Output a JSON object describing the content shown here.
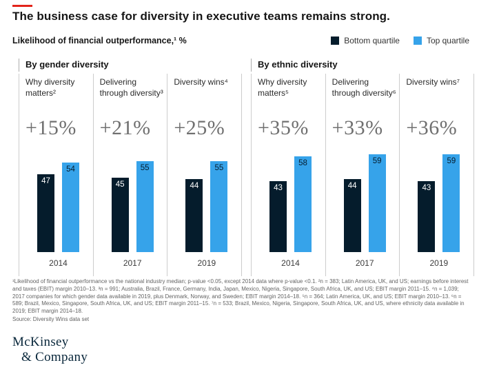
{
  "title": "The business case for diversity in executive teams remains strong.",
  "subtitle": "Likelihood of financial outperformance,¹ %",
  "legend": {
    "items": [
      {
        "label": "Bottom quartile",
        "color": "#051c2c"
      },
      {
        "label": "Top quartile",
        "color": "#36a3ea"
      }
    ]
  },
  "chart_data": {
    "type": "bar",
    "title": "Likelihood of financial outperformance, %",
    "series_names": [
      "Bottom quartile",
      "Top quartile"
    ],
    "ylim": [
      0,
      60
    ],
    "grid": false,
    "legend_position": "top-right",
    "groups": [
      {
        "label": "By gender diversity",
        "panels": [
          {
            "study": "Why diversity matters²",
            "delta": "+15%",
            "year": "2014",
            "bottom_quartile": 47,
            "top_quartile": 54
          },
          {
            "study": "Delivering through diversity³",
            "delta": "+21%",
            "year": "2017",
            "bottom_quartile": 45,
            "top_quartile": 55
          },
          {
            "study": "Diversity wins⁴",
            "delta": "+25%",
            "year": "2019",
            "bottom_quartile": 44,
            "top_quartile": 55
          }
        ]
      },
      {
        "label": "By ethnic diversity",
        "panels": [
          {
            "study": "Why diversity matters⁵",
            "delta": "+35%",
            "year": "2014",
            "bottom_quartile": 43,
            "top_quartile": 58
          },
          {
            "study": "Delivering through diversity⁶",
            "delta": "+33%",
            "year": "2017",
            "bottom_quartile": 44,
            "top_quartile": 59
          },
          {
            "study": "Diversity wins⁷",
            "delta": "+36%",
            "year": "2019",
            "bottom_quartile": 43,
            "top_quartile": 59
          }
        ]
      }
    ]
  },
  "footnote": "¹Likelihood of financial outperformance vs the national industry median; p-value <0.05, except 2014 data where p-value <0.1. ²n = 383; Latin America, UK, and US; earnings before interest and taxes (EBIT) margin 2010–13. ³n = 991; Australia, Brazil, France, Germany, India, Japan, Mexico, Nigeria, Singapore, South Africa, UK, and US; EBIT margin 2011–15. ⁴n = 1,039; 2017 companies for which gender data available in 2019, plus Denmark, Norway, and Sweden; EBIT margin 2014–18. ⁵n = 364; Latin America, UK, and US; EBIT margin 2010–13. ⁶n = 589; Brazil, Mexico, Singapore, South Africa, UK, and US; EBIT margin 2011–15. ⁷n = 533; Brazil, Mexico, Nigeria, Singapore, South Africa, UK, and US, where ethnicity data available in 2019; EBIT margin 2014–18.",
  "source": "Source: Diversity Wins data set",
  "logo": {
    "line1": "McKinsey",
    "line2": "& Company"
  },
  "colors": {
    "bottom_quartile": "#051c2c",
    "top_quartile": "#36a3ea",
    "accent_red": "#e2231a"
  }
}
